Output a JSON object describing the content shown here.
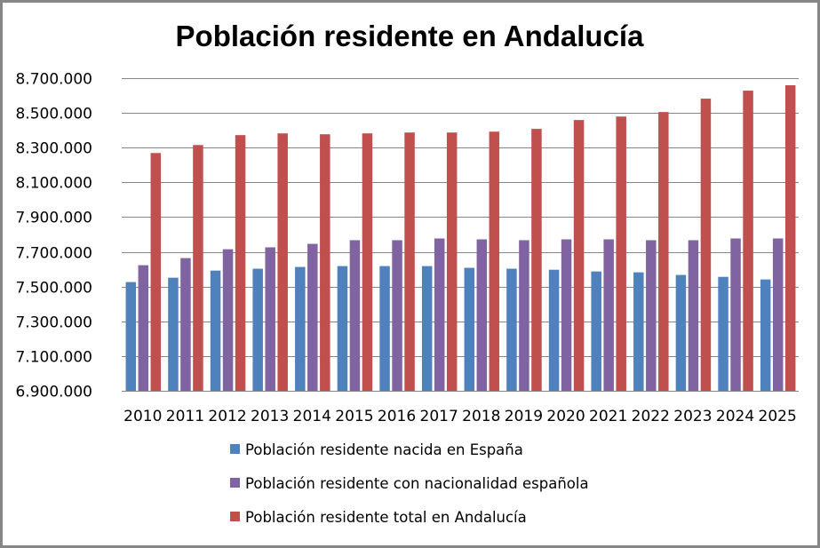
{
  "chart_data": {
    "type": "bar",
    "title": "Población residente en Andalucía",
    "xlabel": "",
    "ylabel": "",
    "ylim": [
      6900000,
      8700000
    ],
    "yticks": [
      6900000,
      7100000,
      7300000,
      7500000,
      7700000,
      7900000,
      8100000,
      8300000,
      8500000,
      8700000
    ],
    "ytick_labels": [
      "6.900.000",
      "7.100.000",
      "7.300.000",
      "7.500.000",
      "7.700.000",
      "7.900.000",
      "8.100.000",
      "8.300.000",
      "8.500.000",
      "8.700.000"
    ],
    "grid": true,
    "legend_position": "bottom",
    "categories": [
      "2010",
      "2011",
      "2012",
      "2013",
      "2014",
      "2015",
      "2016",
      "2017",
      "2018",
      "2019",
      "2020",
      "2021",
      "2022",
      "2023",
      "2024",
      "2025"
    ],
    "series": [
      {
        "name": "Población residente nacida en España",
        "color": "#4F81BD",
        "values": [
          7526000,
          7551000,
          7592000,
          7603000,
          7613000,
          7618000,
          7618000,
          7618000,
          7608000,
          7603000,
          7597000,
          7587000,
          7582000,
          7567000,
          7556000,
          7541000
        ]
      },
      {
        "name": "Población residente con nacionalidad española",
        "color": "#8064A2",
        "values": [
          7623000,
          7664000,
          7715000,
          7726000,
          7746000,
          7767000,
          7767000,
          7777000,
          7772000,
          7767000,
          7772000,
          7772000,
          7767000,
          7767000,
          7777000,
          7777000
        ]
      },
      {
        "name": "Población residente total en Andalucía",
        "color": "#C0504D",
        "values": [
          8269000,
          8315000,
          8372000,
          8382000,
          8377000,
          8382000,
          8387000,
          8387000,
          8392000,
          8408000,
          8459000,
          8479000,
          8505000,
          8582000,
          8628000,
          8659000
        ]
      }
    ]
  }
}
